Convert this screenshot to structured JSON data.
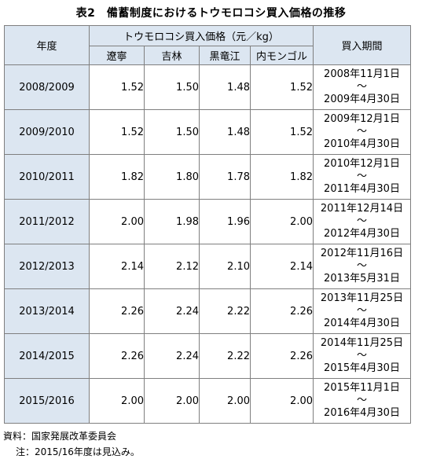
{
  "title": "表2　備蓄制度におけるトウモロコシ買入価格の推移",
  "headers": {
    "year": "年度",
    "price_group": "トウモロコシ買入価格（元／kg）",
    "provinces": [
      "遼寧",
      "吉林",
      "黒竜江",
      "内モンゴル"
    ],
    "period": "買入期間"
  },
  "wave": "～",
  "rows": [
    {
      "year": "2008/2009",
      "prices": [
        "1.52",
        "1.50",
        "1.48",
        "1.52"
      ],
      "start": "2008年11月1日",
      "end": "2009年4月30日"
    },
    {
      "year": "2009/2010",
      "prices": [
        "1.52",
        "1.50",
        "1.48",
        "1.52"
      ],
      "start": "2009年12月1日",
      "end": "2010年4月30日"
    },
    {
      "year": "2010/2011",
      "prices": [
        "1.82",
        "1.80",
        "1.78",
        "1.82"
      ],
      "start": "2010年12月1日",
      "end": "2011年4月30日"
    },
    {
      "year": "2011/2012",
      "prices": [
        "2.00",
        "1.98",
        "1.96",
        "2.00"
      ],
      "start": "2011年12月14日",
      "end": "2012年4月30日"
    },
    {
      "year": "2012/2013",
      "prices": [
        "2.14",
        "2.12",
        "2.10",
        "2.14"
      ],
      "start": "2012年11月16日",
      "end": "2013年5月31日"
    },
    {
      "year": "2013/2014",
      "prices": [
        "2.26",
        "2.24",
        "2.22",
        "2.26"
      ],
      "start": "2013年11月25日",
      "end": "2014年4月30日"
    },
    {
      "year": "2014/2015",
      "prices": [
        "2.26",
        "2.24",
        "2.22",
        "2.26"
      ],
      "start": "2014年11月25日",
      "end": "2015年4月30日"
    },
    {
      "year": "2015/2016",
      "prices": [
        "2.00",
        "2.00",
        "2.00",
        "2.00"
      ],
      "start": "2015年11月1日",
      "end": "2016年4月30日"
    }
  ],
  "source": "資料：国家発展改革委員会",
  "note": "注：2015/16年度は見込み。",
  "colors": {
    "header_fill": "#dce6f1",
    "border": "#7f7f7f"
  }
}
